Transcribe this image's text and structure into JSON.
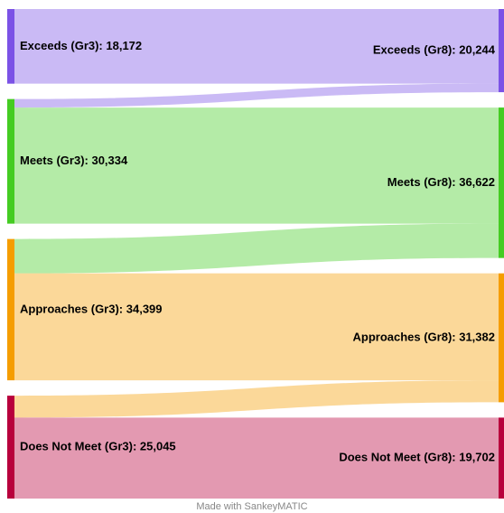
{
  "chart_data": {
    "type": "sankey",
    "nodes": [
      {
        "label": "Exceeds (Gr3): 18,172",
        "value": 18172,
        "column": 0,
        "color": "#7b52e6"
      },
      {
        "label": "Meets (Gr3): 30,334",
        "value": 30334,
        "column": 0,
        "color": "#44cc22"
      },
      {
        "label": "Approaches (Gr3): 34,399",
        "value": 34399,
        "column": 0,
        "color": "#f59d00"
      },
      {
        "label": "Does Not Meet (Gr3): 25,045",
        "value": 25045,
        "column": 0,
        "color": "#b8003c"
      },
      {
        "label": "Exceeds (Gr8): 20,244",
        "value": 20244,
        "column": 1,
        "color": "#7b52e6"
      },
      {
        "label": "Meets (Gr8): 36,622",
        "value": 36622,
        "column": 1,
        "color": "#44cc22"
      },
      {
        "label": "Approaches (Gr8): 31,382",
        "value": 31382,
        "column": 1,
        "color": "#f59d00"
      },
      {
        "label": "Does Not Meet (Gr8): 19,702",
        "value": 19702,
        "column": 1,
        "color": "#b8003c"
      }
    ],
    "links": [
      {
        "source": 0,
        "target": 4,
        "value": 18172
      },
      {
        "source": 1,
        "target": 4,
        "value": 2072
      },
      {
        "source": 1,
        "target": 5,
        "value": 28262
      },
      {
        "source": 2,
        "target": 5,
        "value": 8360
      },
      {
        "source": 2,
        "target": 6,
        "value": 26039
      },
      {
        "source": 3,
        "target": 6,
        "value": 5343
      },
      {
        "source": 3,
        "target": 7,
        "value": 19702
      }
    ],
    "footer": "Made with SankeyMATIC"
  }
}
